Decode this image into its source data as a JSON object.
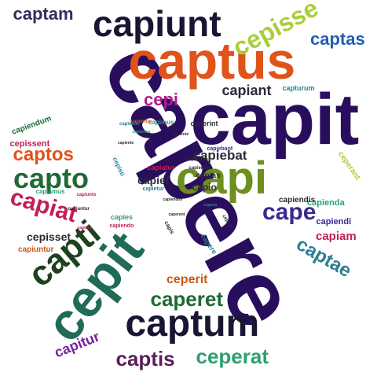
{
  "words": [
    {
      "text": "capere",
      "color": "#2a0e5e"
    },
    {
      "text": "captus",
      "color": "#e0531b"
    },
    {
      "text": "capiunt",
      "color": "#1a1533"
    },
    {
      "text": "capit",
      "color": "#2a0e5e"
    },
    {
      "text": "capi",
      "color": "#6e8f1f"
    },
    {
      "text": "cepit",
      "color": "#1f6b58"
    },
    {
      "text": "capti",
      "color": "#1d4220"
    },
    {
      "text": "captum",
      "color": "#1a1533"
    },
    {
      "text": "captam",
      "color": "#3a2860"
    },
    {
      "text": "cepisse",
      "color": "#a8cf3a"
    },
    {
      "text": "captas",
      "color": "#1f5fb4"
    },
    {
      "text": "capto",
      "color": "#1e6a36"
    },
    {
      "text": "captos",
      "color": "#e0531b"
    },
    {
      "text": "capiat",
      "color": "#c11f55"
    },
    {
      "text": "cape",
      "color": "#3b2890"
    },
    {
      "text": "captae",
      "color": "#2c7f92"
    },
    {
      "text": "caperet",
      "color": "#1e6a36"
    },
    {
      "text": "ceperat",
      "color": "#2ca070"
    },
    {
      "text": "captis",
      "color": "#5b1e5a"
    },
    {
      "text": "capitur",
      "color": "#7a1fa0"
    },
    {
      "text": "cepi",
      "color": "#b01c8e"
    },
    {
      "text": "capiant",
      "color": "#2b2b36"
    },
    {
      "text": "capiebat",
      "color": "#2b2b36"
    },
    {
      "text": "capiam",
      "color": "#c11f55"
    },
    {
      "text": "ceperit",
      "color": "#c85a12"
    },
    {
      "text": "cepisset",
      "color": "#2b2b36"
    },
    {
      "text": "capiendum",
      "color": "#1e6a36"
    },
    {
      "text": "cepissent",
      "color": "#c11f55"
    },
    {
      "text": "capiuntur",
      "color": "#c85a12"
    },
    {
      "text": "capiendi",
      "color": "#3b2890"
    },
    {
      "text": "capienda",
      "color": "#2ca070"
    },
    {
      "text": "capiendis",
      "color": "#2b2b36"
    },
    {
      "text": "ceperant",
      "color": "#a8cf3a"
    },
    {
      "text": "capiet",
      "color": "#2b2b36"
    },
    {
      "text": "capio",
      "color": "#2b2b36"
    },
    {
      "text": "capias",
      "color": "#2b2b36"
    },
    {
      "text": "capiatur",
      "color": "#c11f55"
    },
    {
      "text": "capimus",
      "color": "#2ca070"
    },
    {
      "text": "ceperint",
      "color": "#2b2b36"
    },
    {
      "text": "capiamus",
      "color": "#2ca070"
    },
    {
      "text": "capturum",
      "color": "#2c7f92"
    },
    {
      "text": "capies",
      "color": "#2ca070"
    },
    {
      "text": "capere",
      "color": "#2c7f92"
    },
    {
      "text": "capietur",
      "color": "#2c7f92"
    },
    {
      "text": "cepisti",
      "color": "#2c7f92"
    },
    {
      "text": "capiebant",
      "color": "#3b2890"
    },
    {
      "text": "capiendo",
      "color": "#c11f55"
    },
    {
      "text": "capis",
      "color": "#2b2b36"
    },
    {
      "text": "capientur",
      "color": "#c85a12"
    },
    {
      "text": "capiendae",
      "color": "#2b2b36"
    },
    {
      "text": "capiebas",
      "color": "#2c7f92"
    },
    {
      "text": "capiunto",
      "color": "#c11f55"
    },
    {
      "text": "capiuntur",
      "color": "#2b2b36"
    },
    {
      "text": "ceperis",
      "color": "#2c7f92"
    },
    {
      "text": "cepistis",
      "color": "#2b2b36"
    },
    {
      "text": "capiente",
      "color": "#2b2b36"
    },
    {
      "text": "capiemus",
      "color": "#2ca070"
    },
    {
      "text": "capiendos",
      "color": "#2b2b36"
    },
    {
      "text": "capiebam",
      "color": "#2b2b36"
    },
    {
      "text": "caperent",
      "color": "#2b2b36"
    },
    {
      "text": "capiens",
      "color": "#c11f55"
    },
    {
      "text": "capiente",
      "color": "#2b2b36"
    }
  ]
}
